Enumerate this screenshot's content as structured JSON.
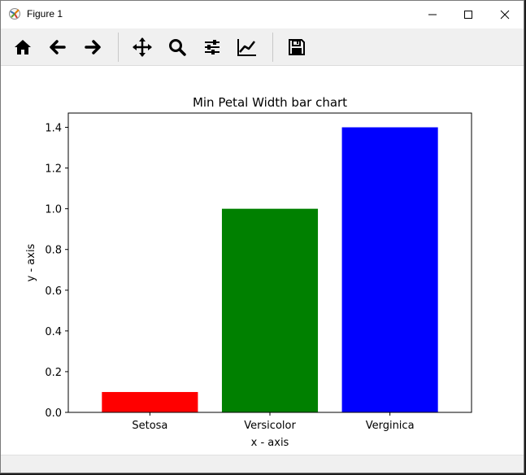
{
  "window": {
    "title": "Figure 1",
    "minimize_icon": "minimize-icon",
    "maximize_icon": "maximize-icon",
    "close_icon": "close-icon"
  },
  "toolbar": {
    "buttons": [
      {
        "name": "home",
        "icon": "home-icon"
      },
      {
        "name": "back",
        "icon": "arrow-left-icon"
      },
      {
        "name": "forward",
        "icon": "arrow-right-icon"
      },
      {
        "name": "pan",
        "icon": "move-icon"
      },
      {
        "name": "zoom",
        "icon": "magnifier-icon"
      },
      {
        "name": "configure-subplots",
        "icon": "sliders-icon"
      },
      {
        "name": "edit-axis",
        "icon": "line-chart-icon"
      },
      {
        "name": "save",
        "icon": "floppy-disk-icon"
      }
    ]
  },
  "chart_data": {
    "type": "bar",
    "title": "Min Petal Width bar chart",
    "xlabel": "x - axis",
    "ylabel": "y - axis",
    "categories": [
      "Setosa",
      "Versicolor",
      "Verginica"
    ],
    "values": [
      0.1,
      1.0,
      1.4
    ],
    "colors": [
      "#ff0000",
      "#008000",
      "#0000ff"
    ],
    "ylim": [
      0,
      1.47
    ],
    "yticks": [
      0.0,
      0.2,
      0.4,
      0.6,
      0.8,
      1.0,
      1.2,
      1.4
    ],
    "ytick_labels": [
      "0.0",
      "0.2",
      "0.4",
      "0.6",
      "0.8",
      "1.0",
      "1.2",
      "1.4"
    ],
    "grid": false
  }
}
